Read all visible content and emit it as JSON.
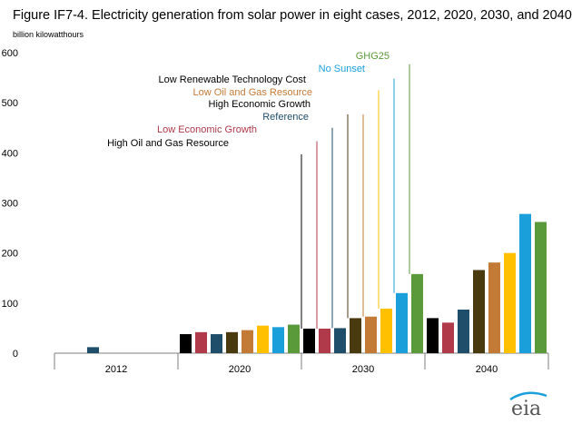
{
  "title": "Figure IF7-4. Electricity generation from solar power in eight cases, 2012, 2020, 2030, and 2040",
  "unit_label": "billion kilowatthours",
  "logo_text": "eia",
  "colors": {
    "reference": "#1f4e6b",
    "low_economic_growth": "#b0394a",
    "high_oil_gas": "#000000",
    "high_economic_growth": "#4a3a10",
    "low_oil_gas": "#c47a37",
    "low_renewable_cost": "#ffc000",
    "no_sunset": "#1a9fdb",
    "ghg25": "#5b9a3a"
  },
  "chart_data": {
    "type": "bar",
    "ylabel": "billion kilowatthours",
    "ylim": [
      0,
      600
    ],
    "yticks": [
      0,
      100,
      200,
      300,
      400,
      500,
      600
    ],
    "categories": [
      "2012",
      "2020",
      "2030",
      "2040"
    ],
    "series": [
      {
        "name": "High Oil and Gas Resource",
        "color": "#000000",
        "values": [
          null,
          38,
          49,
          70
        ]
      },
      {
        "name": "Low Economic Growth",
        "color": "#b0394a",
        "values": [
          null,
          42,
          49,
          61
        ]
      },
      {
        "name": "Reference",
        "color": "#1f4e6b",
        "values": [
          12,
          38,
          50,
          87
        ]
      },
      {
        "name": "High Economic Growth",
        "color": "#4a3a10",
        "values": [
          null,
          42,
          70,
          166
        ]
      },
      {
        "name": "Low Oil and Gas Resource",
        "color": "#c47a37",
        "values": [
          null,
          46,
          73,
          181
        ]
      },
      {
        "name": "Low Renewable Technology  Cost",
        "color": "#ffc000",
        "values": [
          null,
          55,
          89,
          200
        ]
      },
      {
        "name": "No Sunset",
        "color": "#1a9fdb",
        "values": [
          null,
          52,
          120,
          278
        ]
      },
      {
        "name": "GHG25",
        "color": "#5b9a3a",
        "values": [
          null,
          57,
          158,
          262
        ]
      }
    ],
    "annotations": [
      {
        "text": "High Oil and Gas Resource",
        "series": 0,
        "value": 397,
        "color": "#000000"
      },
      {
        "text": "Low Economic Growth",
        "series": 1,
        "value": 423,
        "color": "#b0394a"
      },
      {
        "text": "Reference",
        "series": 2,
        "value": 450,
        "color": "#1f4e6b"
      },
      {
        "text": "High Economic Growth",
        "series": 3,
        "value": 477,
        "color": "#000000"
      },
      {
        "text": "Low Oil and Gas Resource",
        "series": 4,
        "value": 477,
        "color": "#c47a37"
      },
      {
        "text": "Low Renewable Technology  Cost",
        "series": 5,
        "value": 525,
        "color": "#000000"
      },
      {
        "text": "No Sunset",
        "series": 6,
        "value": 548,
        "color": "#1a9fdb"
      },
      {
        "text": "GHG25",
        "series": 7,
        "value": 577,
        "color": "#5b9a3a"
      }
    ]
  }
}
